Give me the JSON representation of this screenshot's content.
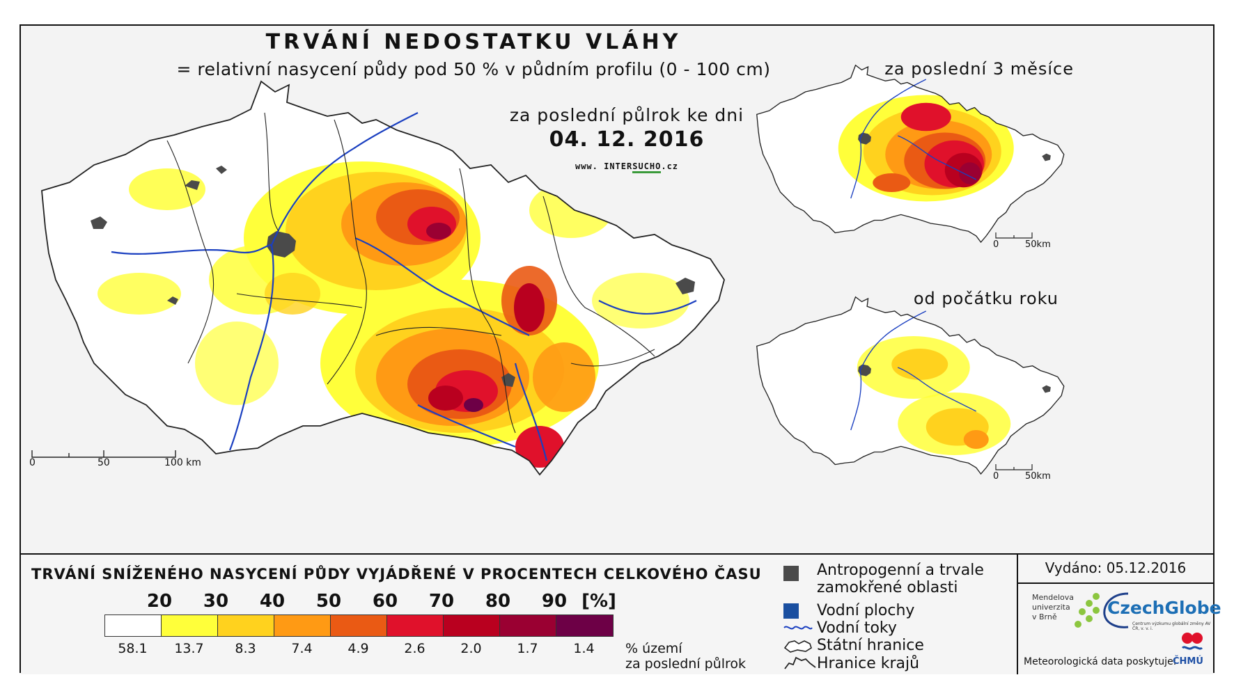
{
  "title": "TRVÁNÍ NEDOSTATKU VLÁHY",
  "subtitle": "= relativní nasycení půdy pod 50 % v půdním profilu (0 - 100 cm)",
  "main_map": {
    "period": "za poslední půlrok ke dni",
    "date": "04. 12. 2016",
    "website": {
      "prefix": "www. INTER",
      "highlight": "SUCHO",
      "suffix": ".cz"
    },
    "scale": {
      "t0": "0",
      "t1": "50",
      "t2": "100 km"
    }
  },
  "inset_3m": {
    "title": "za poslední 3 měsíce",
    "scale": {
      "t0": "0",
      "t1": "50km"
    }
  },
  "inset_year": {
    "title": "od počátku roku",
    "scale": {
      "t0": "0",
      "t1": "50km"
    }
  },
  "legend": {
    "title": "TRVÁNÍ SNÍŽENÉHO NASYCENÍ PŮDY VYJÁDŘENÉ V PROCENTECH CELKOVÉHO ČASU",
    "breaks": [
      "20",
      "30",
      "40",
      "50",
      "60",
      "70",
      "80",
      "90"
    ],
    "unit": "[%]",
    "colors": [
      "#ffffff",
      "#ffff3a",
      "#ffd21e",
      "#ff9a14",
      "#ea5a14",
      "#e0112b",
      "#b9001f",
      "#9a0032",
      "#6d0046"
    ],
    "percents": [
      "58.1",
      "13.7",
      "8.3",
      "7.4",
      "4.9",
      "2.6",
      "2.0",
      "1.7",
      "1.4"
    ],
    "pct_label_1": "% území",
    "pct_label_2": "za poslední půlrok"
  },
  "symbols": {
    "anthro_1": "Antropogenní a trvale",
    "anthro_2": "zamokřené oblasti",
    "water_bodies": "Vodní plochy",
    "rivers": "Vodní toky",
    "state_border": "Státní hranice",
    "region_border": "Hranice krajů"
  },
  "issued": "Vydáno: 05.12.2016",
  "mendel": {
    "l1": "Mendelova",
    "l2": "univerzita",
    "l3": "v Brně"
  },
  "czechglobe": {
    "name": "CzechGlobe",
    "sub": "Centrum výzkumu globální změny AV ČR, v. v. i."
  },
  "meteo_text": "Meteorologická data poskytuje:",
  "chmu": "ČHMÚ",
  "colors": {
    "anthro": "#4a4a4a",
    "water": "#1a4fa0",
    "river": "#1a3fc0"
  }
}
